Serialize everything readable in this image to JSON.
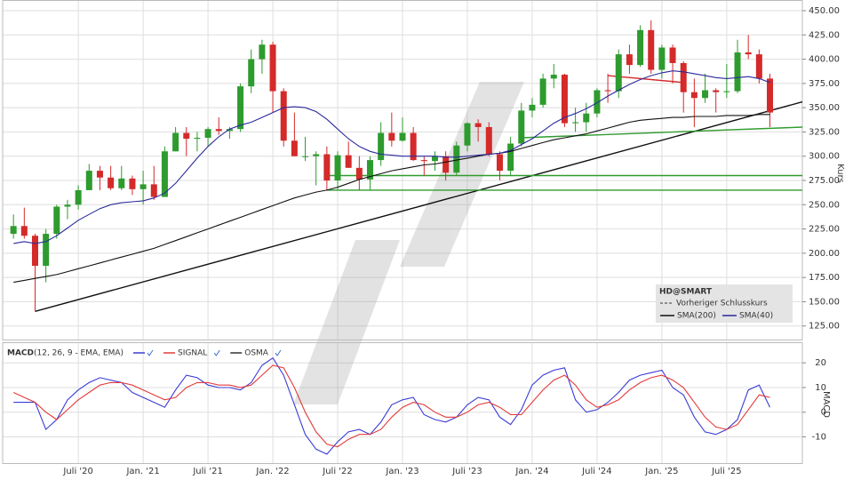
{
  "chart_data": [
    {
      "type": "candlestick",
      "title": "HD@SMART",
      "ylabel": "Kurs",
      "x": [
        "2020-01",
        "2020-02",
        "2020-03",
        "2020-04",
        "2020-05",
        "2020-06",
        "2020-07",
        "2020-08",
        "2020-09",
        "2020-10",
        "2020-11",
        "2020-12",
        "2021-01",
        "2021-02",
        "2021-03",
        "2021-04",
        "2021-05",
        "2021-06",
        "2021-07",
        "2021-08",
        "2021-09",
        "2021-10",
        "2021-11",
        "2021-12",
        "2022-01",
        "2022-02",
        "2022-03",
        "2022-04",
        "2022-05",
        "2022-06",
        "2022-07",
        "2022-08",
        "2022-09",
        "2022-10",
        "2022-11",
        "2022-12",
        "2023-01",
        "2023-02",
        "2023-03",
        "2023-04",
        "2023-05",
        "2023-06",
        "2023-07",
        "2023-08",
        "2023-09",
        "2023-10",
        "2023-11",
        "2023-12",
        "2024-01",
        "2024-02",
        "2024-03",
        "2024-04",
        "2024-05",
        "2024-06",
        "2024-07",
        "2024-08",
        "2024-09",
        "2024-10",
        "2024-11",
        "2024-12",
        "2025-01",
        "2025-02",
        "2025-03",
        "2025-04",
        "2025-05",
        "2025-06",
        "2025-07",
        "2025-08",
        "2025-09",
        "2025-10",
        "2025-11"
      ],
      "open": [
        220,
        228,
        218,
        187,
        220,
        248,
        250,
        265,
        285,
        278,
        267,
        277,
        266,
        271,
        258,
        305,
        324,
        318,
        319,
        328,
        326,
        328,
        372,
        400,
        415,
        367,
        316,
        300,
        300,
        302,
        275,
        301,
        288,
        276,
        296,
        324,
        316,
        324,
        296,
        295,
        300,
        283,
        311,
        334,
        330,
        302,
        285,
        313,
        347,
        353,
        380,
        384,
        334,
        335,
        344,
        368,
        367,
        405,
        394,
        430,
        389,
        412,
        396,
        366,
        360,
        368,
        366,
        367,
        407,
        405,
        380
      ],
      "high": [
        240,
        247,
        220,
        225,
        250,
        255,
        270,
        292,
        290,
        290,
        290,
        280,
        285,
        290,
        310,
        330,
        330,
        325,
        330,
        340,
        330,
        375,
        410,
        420,
        418,
        370,
        345,
        320,
        305,
        310,
        305,
        315,
        300,
        300,
        335,
        345,
        340,
        330,
        300,
        305,
        305,
        315,
        335,
        338,
        335,
        305,
        320,
        355,
        360,
        385,
        395,
        385,
        350,
        355,
        370,
        385,
        410,
        415,
        435,
        440,
        415,
        415,
        398,
        380,
        385,
        370,
        395,
        420,
        425,
        410,
        385
      ],
      "low": [
        215,
        215,
        140,
        170,
        215,
        235,
        245,
        265,
        265,
        265,
        265,
        260,
        250,
        255,
        258,
        305,
        300,
        305,
        310,
        322,
        318,
        325,
        365,
        385,
        345,
        310,
        300,
        295,
        270,
        265,
        265,
        288,
        265,
        265,
        290,
        310,
        315,
        295,
        280,
        285,
        275,
        280,
        305,
        315,
        300,
        275,
        280,
        310,
        340,
        350,
        370,
        330,
        325,
        325,
        340,
        355,
        360,
        385,
        392,
        385,
        380,
        375,
        345,
        330,
        355,
        345,
        360,
        365,
        400,
        375,
        330
      ],
      "close": [
        228,
        218,
        187,
        220,
        248,
        250,
        265,
        285,
        278,
        267,
        277,
        266,
        271,
        258,
        305,
        324,
        318,
        319,
        328,
        326,
        328,
        372,
        400,
        415,
        367,
        316,
        300,
        300,
        302,
        275,
        301,
        288,
        276,
        296,
        324,
        316,
        324,
        296,
        295,
        300,
        283,
        311,
        334,
        330,
        302,
        285,
        313,
        347,
        353,
        380,
        384,
        334,
        335,
        344,
        368,
        367,
        405,
        394,
        430,
        389,
        412,
        396,
        366,
        360,
        368,
        366,
        367,
        407,
        405,
        380,
        345
      ],
      "up_color": "#2e9b2e",
      "down_color": "#d42a2a",
      "series": [
        {
          "name": "SMA(200)",
          "color": "#111111",
          "values": [
            170,
            172,
            174,
            176,
            178,
            181,
            184,
            187,
            190,
            193,
            196,
            199,
            202,
            205,
            209,
            213,
            217,
            221,
            225,
            229,
            233,
            237,
            241,
            245,
            249,
            253,
            257,
            260,
            263,
            265,
            268,
            272,
            276,
            279,
            282,
            285,
            287,
            289,
            291,
            292,
            294,
            296,
            298,
            300,
            302,
            303,
            305,
            308,
            311,
            314,
            317,
            319,
            321,
            323,
            326,
            329,
            332,
            335,
            337,
            338,
            339,
            340,
            340,
            341,
            341,
            341,
            342,
            342,
            342,
            343,
            343
          ]
        },
        {
          "name": "SMA(40)",
          "color": "#2a2a9c",
          "values": [
            210,
            212,
            210,
            212,
            218,
            226,
            234,
            240,
            246,
            250,
            252,
            253,
            254,
            257,
            262,
            272,
            285,
            298,
            310,
            320,
            328,
            332,
            335,
            340,
            345,
            350,
            351,
            350,
            346,
            338,
            328,
            318,
            310,
            305,
            302,
            301,
            300,
            300,
            300,
            300,
            299,
            299,
            300,
            301,
            302,
            303,
            306,
            312,
            318,
            326,
            334,
            340,
            344,
            349,
            355,
            362,
            368,
            374,
            379,
            383,
            386,
            388,
            387,
            385,
            383,
            381,
            380,
            381,
            382,
            380,
            376
          ]
        }
      ],
      "prev_close_label": "Vorheriger Schlusskurs",
      "lines": [
        {
          "x": [
            "2020-03",
            "2026-02"
          ],
          "values": [
            140,
            356
          ],
          "color": "#111111"
        },
        {
          "x": [
            "2023-12",
            "2026-02"
          ],
          "values": [
            319,
            330
          ],
          "color": "#2e9b2e"
        },
        {
          "x": [
            "2022-06",
            "2026-02"
          ],
          "values": [
            280,
            280
          ],
          "color": "#2e9b2e"
        },
        {
          "x": [
            "2022-06",
            "2026-02"
          ],
          "values": [
            265,
            265
          ],
          "color": "#2e9b2e"
        },
        {
          "x": [
            "2024-08",
            "2025-03"
          ],
          "values": [
            383,
            376
          ],
          "color": "#d42a2a"
        }
      ],
      "xlim": [
        "2019-12",
        "2026-02"
      ],
      "ylim": [
        111,
        461
      ],
      "yticks": [
        {
          "value": 125,
          "label": "125.00"
        },
        {
          "value": 150,
          "label": "150.00"
        },
        {
          "value": 175,
          "label": "175.00"
        },
        {
          "value": 200,
          "label": "200.00"
        },
        {
          "value": 225,
          "label": "225.00"
        },
        {
          "value": 250,
          "label": "250.00"
        },
        {
          "value": 275,
          "label": "275.00"
        },
        {
          "value": 300,
          "label": "300.00"
        },
        {
          "value": 325,
          "label": "325.00"
        },
        {
          "value": 350,
          "label": "350.00"
        },
        {
          "value": 375,
          "label": "375.00"
        },
        {
          "value": 400,
          "label": "400.00"
        },
        {
          "value": 425,
          "label": "425.00"
        },
        {
          "value": 450,
          "label": "450.00"
        }
      ],
      "xticks": [
        {
          "value": "2020-07",
          "label": "Juli '20"
        },
        {
          "value": "2021-01",
          "label": "Jan. '21"
        },
        {
          "value": "2021-07",
          "label": "Juli '21"
        },
        {
          "value": "2022-01",
          "label": "Jan. '22"
        },
        {
          "value": "2022-07",
          "label": "Juli '22"
        },
        {
          "value": "2023-01",
          "label": "Jan. '23"
        },
        {
          "value": "2023-07",
          "label": "Juli '23"
        },
        {
          "value": "2024-01",
          "label": "Jan. '24"
        },
        {
          "value": "2024-07",
          "label": "Juli '24"
        },
        {
          "value": "2025-01",
          "label": "Jan. '25"
        },
        {
          "value": "2025-07",
          "label": "Juli '25"
        }
      ],
      "grid": true
    },
    {
      "type": "line",
      "title": "MACD",
      "subtitle": "(12, 26, 9 - EMA, EMA)",
      "ylabel": "MACD",
      "series": [
        {
          "color": "#3b3bd6",
          "values": [
            4,
            4,
            4,
            -7,
            -3,
            5,
            9,
            12,
            14,
            13,
            12,
            8,
            6,
            4,
            2,
            9,
            15,
            14,
            11,
            10,
            10,
            9,
            12,
            19,
            22,
            15,
            3,
            -9,
            -15,
            -17,
            -12,
            -8,
            -7,
            -9,
            -4,
            3,
            5,
            6,
            -1,
            -3,
            -4,
            -2,
            3,
            6,
            5,
            -2,
            -5,
            1,
            11,
            15,
            17,
            18,
            5,
            0,
            1,
            4,
            8,
            13,
            15,
            16,
            17,
            10,
            7,
            -2,
            -8,
            -9,
            -7,
            -3,
            9,
            11,
            2
          ]
        },
        {
          "name": "SIGNAL",
          "color": "#e23a3a",
          "values": [
            8,
            6,
            4,
            0,
            -3,
            1,
            5,
            8,
            11,
            12,
            12,
            11,
            9,
            7,
            5,
            6,
            10,
            12,
            12,
            11,
            11,
            10,
            11,
            15,
            19,
            18,
            10,
            0,
            -8,
            -13,
            -14,
            -11,
            -9,
            -9,
            -7,
            -2,
            2,
            4,
            3,
            0,
            -2,
            -2,
            0,
            3,
            4,
            2,
            -1,
            -1,
            4,
            9,
            13,
            15,
            11,
            5,
            2,
            3,
            5,
            9,
            12,
            14,
            15,
            13,
            10,
            4,
            -2,
            -6,
            -7,
            -5,
            1,
            7,
            6
          ]
        },
        {
          "name": "OSMA",
          "color": "#333333"
        }
      ],
      "ylim": [
        -21,
        28
      ],
      "yticks": [
        20,
        10,
        0,
        -10
      ],
      "grid": true
    }
  ]
}
